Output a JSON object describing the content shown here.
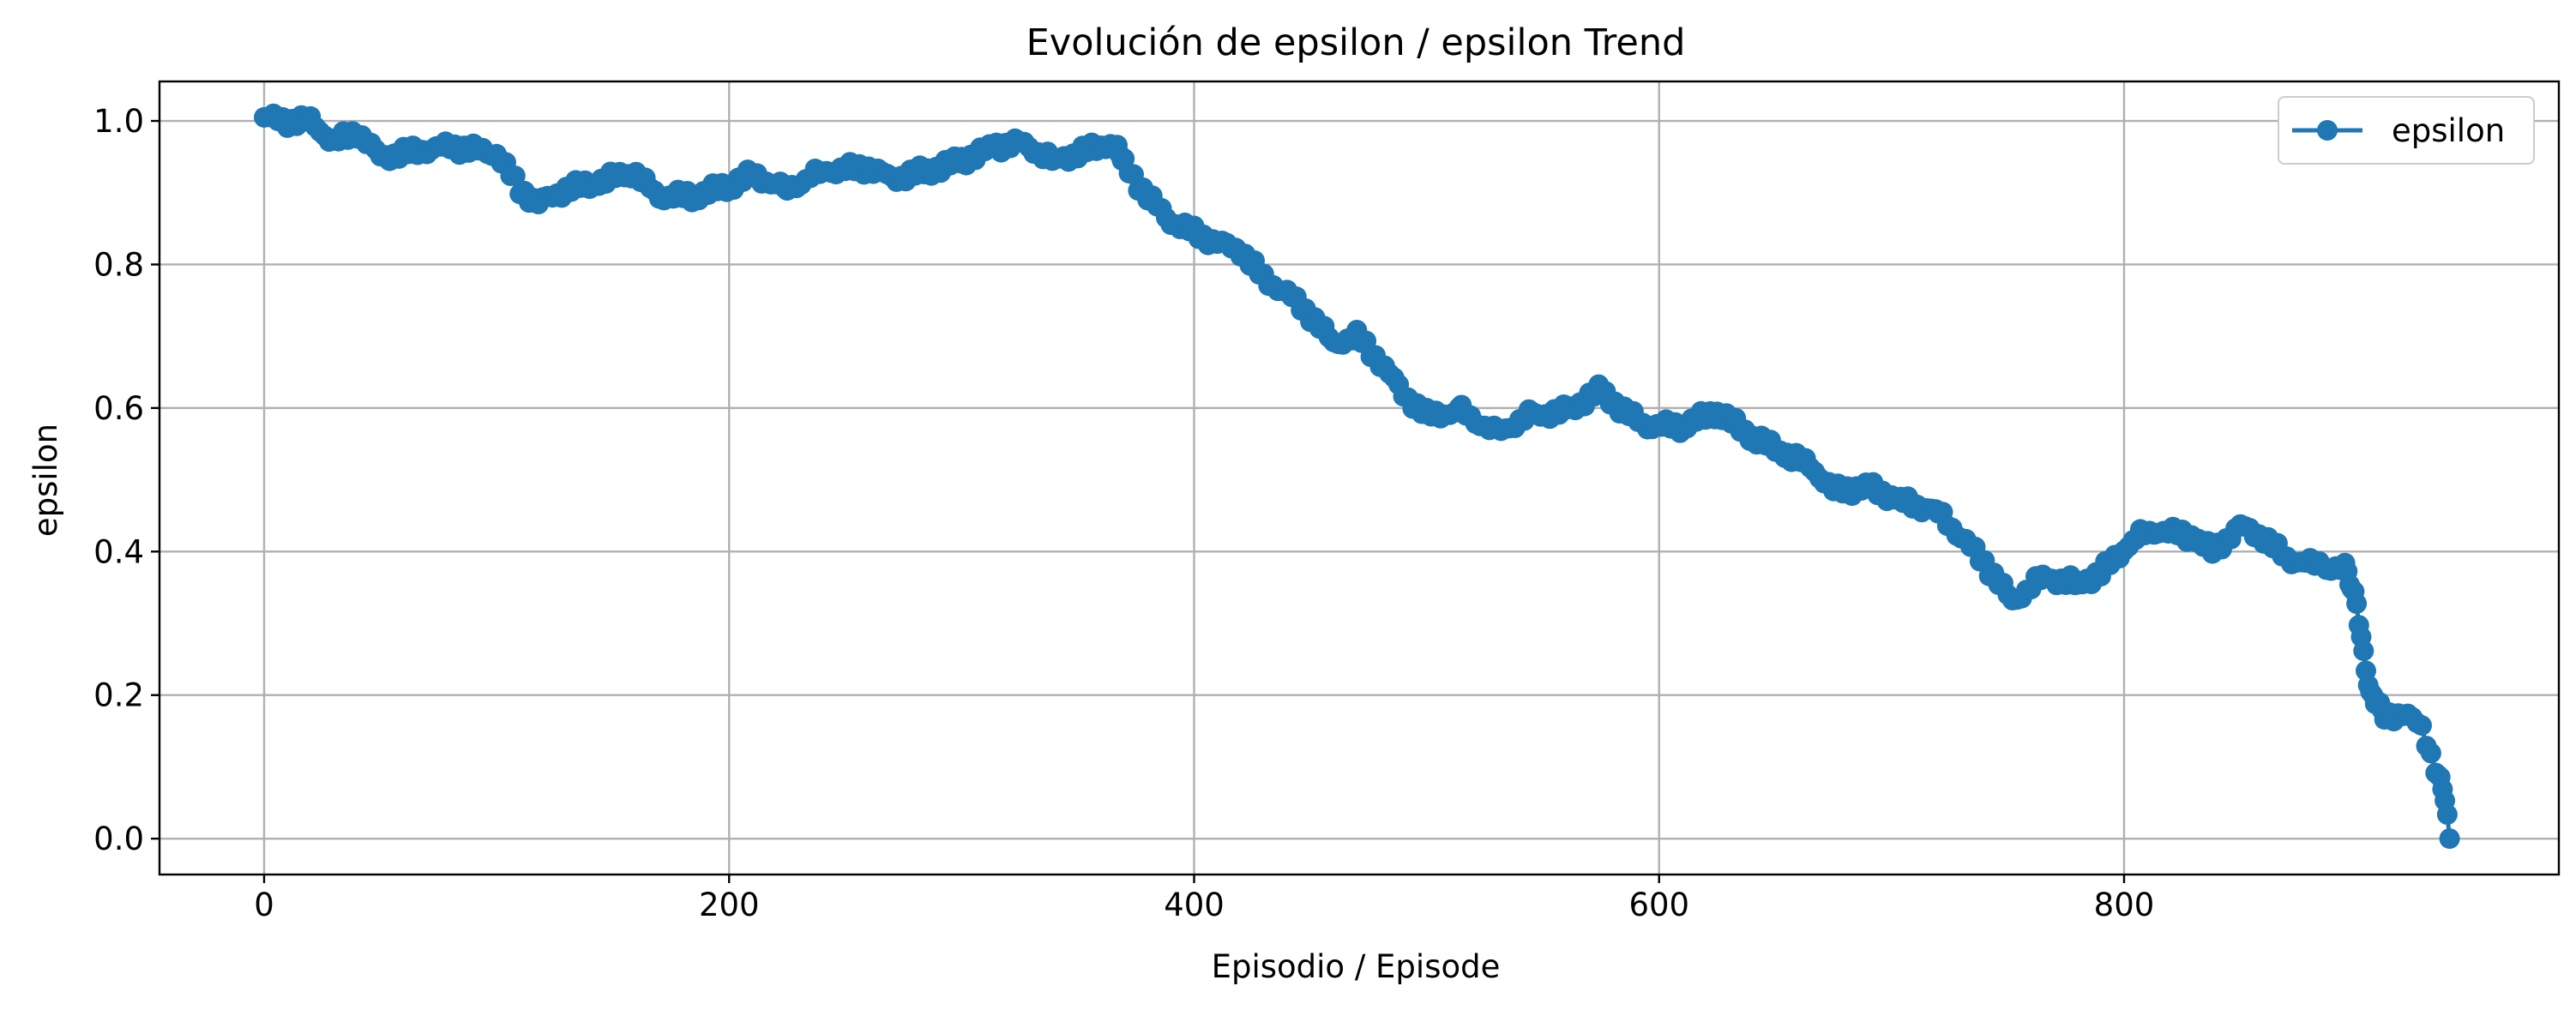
{
  "chart_data": {
    "type": "line",
    "title": "Evolución de epsilon / epsilon Trend",
    "xlabel": "Episodio / Episode",
    "ylabel": "epsilon",
    "xlim": [
      -45,
      987
    ],
    "ylim": [
      -0.05,
      1.055
    ],
    "x_ticks": [
      0,
      200,
      400,
      600,
      800
    ],
    "y_ticks": [
      0.0,
      0.2,
      0.4,
      0.6,
      0.8,
      1.0
    ],
    "x_tick_labels": [
      "0",
      "200",
      "400",
      "600",
      "800"
    ],
    "y_tick_labels": [
      "0.0",
      "0.2",
      "0.4",
      "0.6",
      "0.8",
      "1.0"
    ],
    "grid": true,
    "legend": {
      "placement": "top-right",
      "entries": [
        "epsilon"
      ]
    },
    "series": [
      {
        "name": "epsilon",
        "color": "#1f77b4",
        "marker": "circle",
        "anchors": [
          [
            0,
            1.005
          ],
          [
            10,
            1.0
          ],
          [
            20,
            1.0
          ],
          [
            30,
            0.97
          ],
          [
            40,
            0.985
          ],
          [
            50,
            0.95
          ],
          [
            60,
            0.955
          ],
          [
            80,
            0.965
          ],
          [
            90,
            0.96
          ],
          [
            100,
            0.955
          ],
          [
            110,
            0.905
          ],
          [
            118,
            0.885
          ],
          [
            130,
            0.905
          ],
          [
            145,
            0.915
          ],
          [
            158,
            0.93
          ],
          [
            170,
            0.895
          ],
          [
            185,
            0.895
          ],
          [
            200,
            0.91
          ],
          [
            210,
            0.925
          ],
          [
            225,
            0.905
          ],
          [
            240,
            0.93
          ],
          [
            260,
            0.935
          ],
          [
            270,
            0.92
          ],
          [
            285,
            0.93
          ],
          [
            300,
            0.945
          ],
          [
            315,
            0.965
          ],
          [
            325,
            0.97
          ],
          [
            340,
            0.945
          ],
          [
            350,
            0.955
          ],
          [
            365,
            0.97
          ],
          [
            370,
            0.94
          ],
          [
            380,
            0.895
          ],
          [
            390,
            0.86
          ],
          [
            400,
            0.845
          ],
          [
            410,
            0.83
          ],
          [
            420,
            0.82
          ],
          [
            430,
            0.78
          ],
          [
            440,
            0.76
          ],
          [
            450,
            0.73
          ],
          [
            460,
            0.69
          ],
          [
            470,
            0.7
          ],
          [
            480,
            0.665
          ],
          [
            490,
            0.62
          ],
          [
            500,
            0.59
          ],
          [
            515,
            0.595
          ],
          [
            530,
            0.565
          ],
          [
            545,
            0.59
          ],
          [
            560,
            0.595
          ],
          [
            575,
            0.625
          ],
          [
            585,
            0.595
          ],
          [
            595,
            0.575
          ],
          [
            610,
            0.575
          ],
          [
            625,
            0.595
          ],
          [
            640,
            0.56
          ],
          [
            655,
            0.535
          ],
          [
            665,
            0.52
          ],
          [
            675,
            0.485
          ],
          [
            690,
            0.49
          ],
          [
            705,
            0.47
          ],
          [
            720,
            0.455
          ],
          [
            730,
            0.42
          ],
          [
            740,
            0.385
          ],
          [
            752,
            0.33
          ],
          [
            765,
            0.365
          ],
          [
            780,
            0.355
          ],
          [
            790,
            0.37
          ],
          [
            805,
            0.42
          ],
          [
            815,
            0.43
          ],
          [
            830,
            0.42
          ],
          [
            838,
            0.4
          ],
          [
            850,
            0.435
          ],
          [
            860,
            0.42
          ],
          [
            870,
            0.39
          ],
          [
            885,
            0.38
          ],
          [
            895,
            0.375
          ],
          [
            900,
            0.33
          ],
          [
            903,
            0.26
          ],
          [
            906,
            0.2
          ],
          [
            912,
            0.17
          ],
          [
            920,
            0.175
          ],
          [
            928,
            0.155
          ],
          [
            935,
            0.09
          ],
          [
            938,
            0.055
          ],
          [
            940,
            0.0
          ]
        ]
      }
    ]
  }
}
